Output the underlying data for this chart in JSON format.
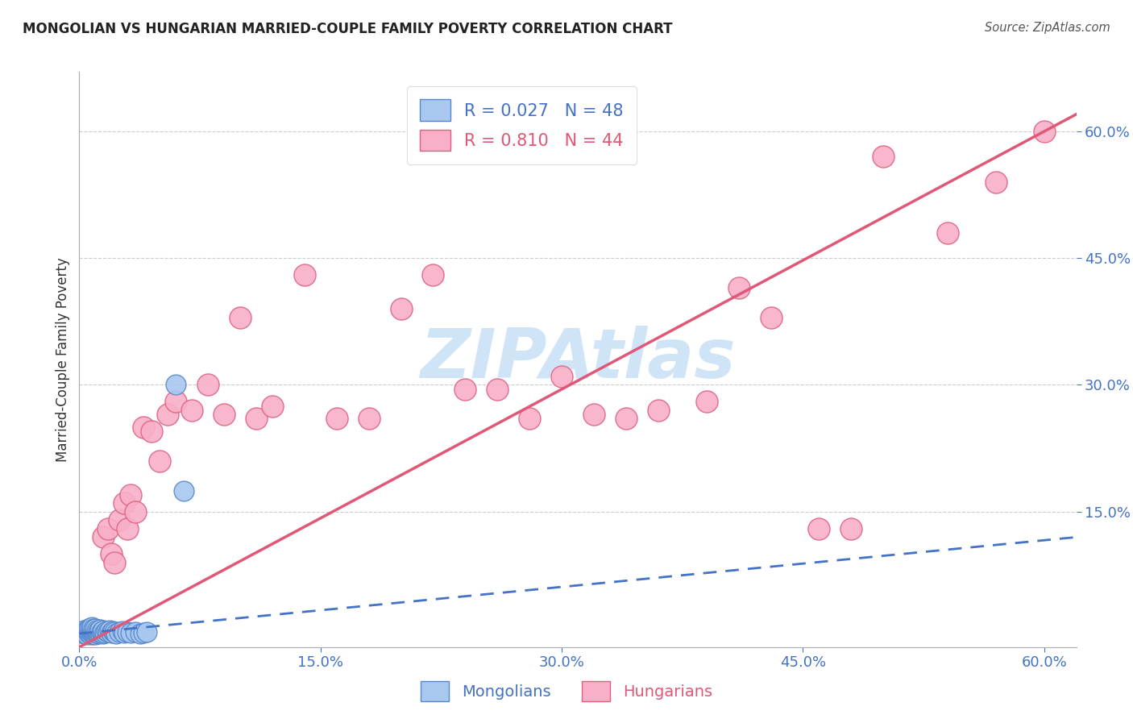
{
  "title": "MONGOLIAN VS HUNGARIAN MARRIED-COUPLE FAMILY POVERTY CORRELATION CHART",
  "source": "Source: ZipAtlas.com",
  "ylabel": "Married-Couple Family Poverty",
  "xlim": [
    0.0,
    0.62
  ],
  "ylim": [
    -0.01,
    0.67
  ],
  "xtick_labels": [
    "0.0%",
    "15.0%",
    "30.0%",
    "45.0%",
    "60.0%"
  ],
  "xtick_values": [
    0.0,
    0.15,
    0.3,
    0.45,
    0.6
  ],
  "ytick_values": [
    0.15,
    0.3,
    0.45,
    0.6
  ],
  "ytick_labels": [
    "15.0%",
    "30.0%",
    "45.0%",
    "60.0%"
  ],
  "mongolian_color": "#a8c8f0",
  "hungarian_color": "#f8b0c8",
  "mongolian_edge_color": "#5588cc",
  "hungarian_edge_color": "#e06080",
  "mongolian_line_color": "#4472c4",
  "hungarian_line_color": "#e05878",
  "mongolian_R": 0.027,
  "mongolian_N": 48,
  "hungarian_R": 0.81,
  "hungarian_N": 44,
  "legend_label_mongolians": "Mongolians",
  "legend_label_hungarians": "Hungarians",
  "watermark": "ZIPAtlas",
  "watermark_color": "#d0e4f8",
  "mongolian_x": [
    0.002,
    0.003,
    0.003,
    0.004,
    0.005,
    0.005,
    0.006,
    0.006,
    0.007,
    0.007,
    0.007,
    0.008,
    0.008,
    0.008,
    0.009,
    0.009,
    0.009,
    0.01,
    0.01,
    0.01,
    0.011,
    0.011,
    0.012,
    0.012,
    0.013,
    0.013,
    0.014,
    0.015,
    0.015,
    0.016,
    0.017,
    0.018,
    0.019,
    0.02,
    0.021,
    0.022,
    0.023,
    0.025,
    0.027,
    0.028,
    0.03,
    0.032,
    0.035,
    0.038,
    0.04,
    0.042,
    0.06,
    0.065
  ],
  "mongolian_y": [
    0.008,
    0.006,
    0.01,
    0.008,
    0.005,
    0.01,
    0.007,
    0.012,
    0.006,
    0.009,
    0.013,
    0.007,
    0.01,
    0.014,
    0.006,
    0.009,
    0.012,
    0.005,
    0.008,
    0.012,
    0.007,
    0.01,
    0.006,
    0.009,
    0.007,
    0.011,
    0.008,
    0.006,
    0.01,
    0.007,
    0.009,
    0.008,
    0.01,
    0.007,
    0.009,
    0.008,
    0.006,
    0.008,
    0.009,
    0.007,
    0.008,
    0.007,
    0.008,
    0.006,
    0.007,
    0.008,
    0.3,
    0.175
  ],
  "hungarian_x": [
    0.008,
    0.01,
    0.012,
    0.015,
    0.018,
    0.02,
    0.022,
    0.025,
    0.028,
    0.03,
    0.032,
    0.035,
    0.04,
    0.045,
    0.05,
    0.055,
    0.06,
    0.07,
    0.08,
    0.09,
    0.1,
    0.11,
    0.12,
    0.14,
    0.16,
    0.18,
    0.2,
    0.22,
    0.24,
    0.26,
    0.28,
    0.3,
    0.32,
    0.34,
    0.36,
    0.39,
    0.41,
    0.43,
    0.46,
    0.48,
    0.5,
    0.54,
    0.57,
    0.6
  ],
  "hungarian_y": [
    0.006,
    0.008,
    0.01,
    0.12,
    0.13,
    0.1,
    0.09,
    0.14,
    0.16,
    0.13,
    0.17,
    0.15,
    0.25,
    0.245,
    0.21,
    0.265,
    0.28,
    0.27,
    0.3,
    0.265,
    0.38,
    0.26,
    0.275,
    0.43,
    0.26,
    0.26,
    0.39,
    0.43,
    0.295,
    0.295,
    0.26,
    0.31,
    0.265,
    0.26,
    0.27,
    0.28,
    0.415,
    0.38,
    0.13,
    0.13,
    0.57,
    0.48,
    0.54,
    0.6
  ],
  "hun_line_x0": 0.0,
  "hun_line_y0": -0.01,
  "hun_line_x1": 0.62,
  "hun_line_y1": 0.62,
  "mon_line_x0": 0.0,
  "mon_line_y0": 0.006,
  "mon_line_x1": 0.62,
  "mon_line_y1": 0.12
}
